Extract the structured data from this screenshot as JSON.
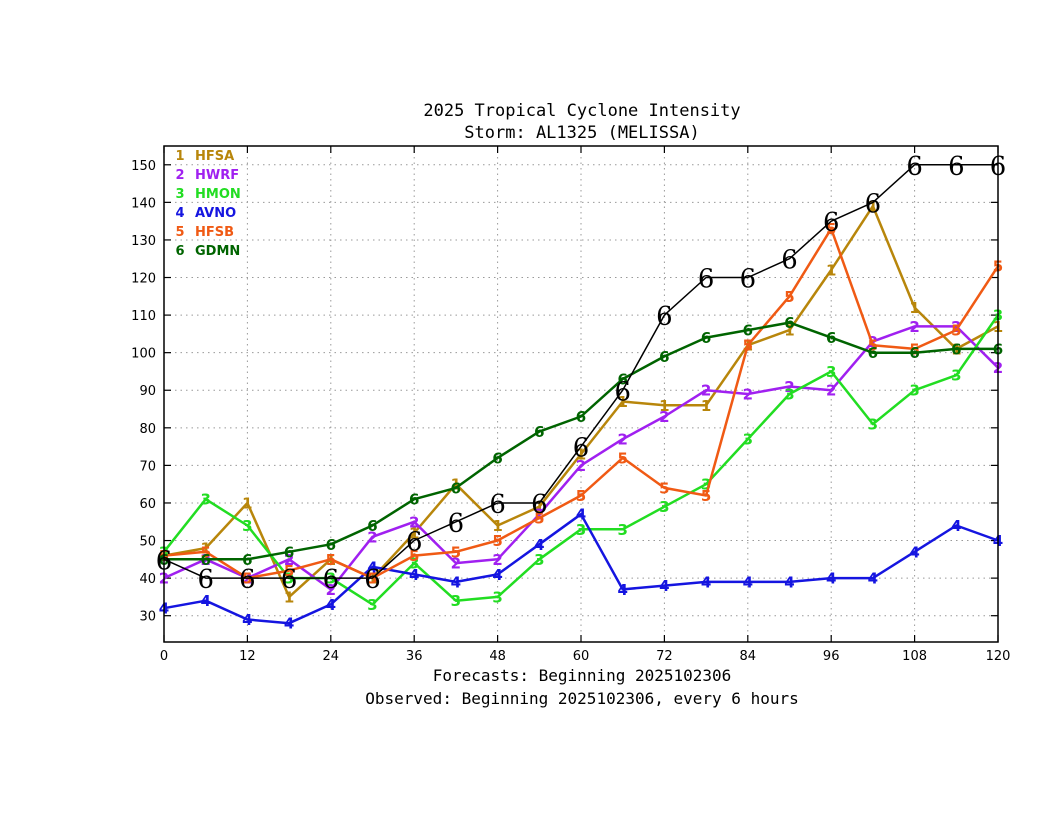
{
  "chart_data": {
    "type": "line",
    "title": "2025 Tropical Cyclone Intensity",
    "subtitle": "Storm: AL1325 (MELISSA)",
    "xlabel": "Forecasts: Beginning 2025102306",
    "xlabel2": "Observed: Beginning 2025102306, every 6 hours",
    "xlim": [
      0,
      120
    ],
    "ylim": [
      23,
      155
    ],
    "xticks": [
      0,
      12,
      24,
      36,
      48,
      60,
      72,
      84,
      96,
      108,
      120
    ],
    "yticks": [
      30,
      40,
      50,
      60,
      70,
      80,
      90,
      100,
      110,
      120,
      130,
      140,
      150
    ],
    "grid": true,
    "legend_position": "top-left",
    "x": [
      0,
      6,
      12,
      18,
      24,
      30,
      36,
      42,
      48,
      54,
      60,
      66,
      72,
      78,
      84,
      90,
      96,
      102,
      108,
      114,
      120
    ],
    "series": [
      {
        "name": "HFSA",
        "marker": "1",
        "color": "#b8860b",
        "values": [
          46,
          48,
          60,
          35,
          45,
          40,
          52,
          65,
          54,
          59,
          73,
          87,
          86,
          86,
          102,
          106,
          122,
          139,
          112,
          101,
          107
        ]
      },
      {
        "name": "HWRF",
        "marker": "2",
        "color": "#a020f0",
        "values": [
          40,
          45,
          40,
          45,
          37,
          51,
          55,
          44,
          45,
          57,
          70,
          77,
          83,
          90,
          89,
          91,
          90,
          103,
          107,
          107,
          96
        ]
      },
      {
        "name": "HMON",
        "marker": "3",
        "color": "#22dd22",
        "values": [
          47,
          61,
          54,
          40,
          40,
          33,
          44,
          34,
          35,
          45,
          53,
          53,
          59,
          65,
          77,
          89,
          95,
          81,
          90,
          94,
          110
        ]
      },
      {
        "name": "AVNO",
        "marker": "4",
        "color": "#1515e0",
        "values": [
          32,
          34,
          29,
          28,
          33,
          43,
          41,
          39,
          41,
          49,
          57,
          37,
          38,
          39,
          39,
          39,
          40,
          40,
          47,
          54,
          50
        ]
      },
      {
        "name": "HFSB",
        "marker": "5",
        "color": "#f05a14",
        "values": [
          46,
          47,
          40,
          42,
          45,
          40,
          46,
          47,
          50,
          56,
          62,
          72,
          64,
          62,
          102,
          115,
          133,
          102,
          101,
          106,
          123
        ]
      },
      {
        "name": "GDMN",
        "marker": "6",
        "color": "#006400",
        "values": [
          45,
          45,
          45,
          47,
          49,
          54,
          61,
          64,
          72,
          79,
          83,
          93,
          99,
          104,
          106,
          108,
          104,
          100,
          100,
          101,
          101
        ]
      }
    ],
    "observed": {
      "marker": "9",
      "color": "#000000",
      "values": [
        45,
        40,
        40,
        40,
        40,
        40,
        50,
        55,
        60,
        60,
        75,
        90,
        110,
        120,
        120,
        125,
        135,
        140,
        150,
        150,
        150
      ]
    }
  }
}
